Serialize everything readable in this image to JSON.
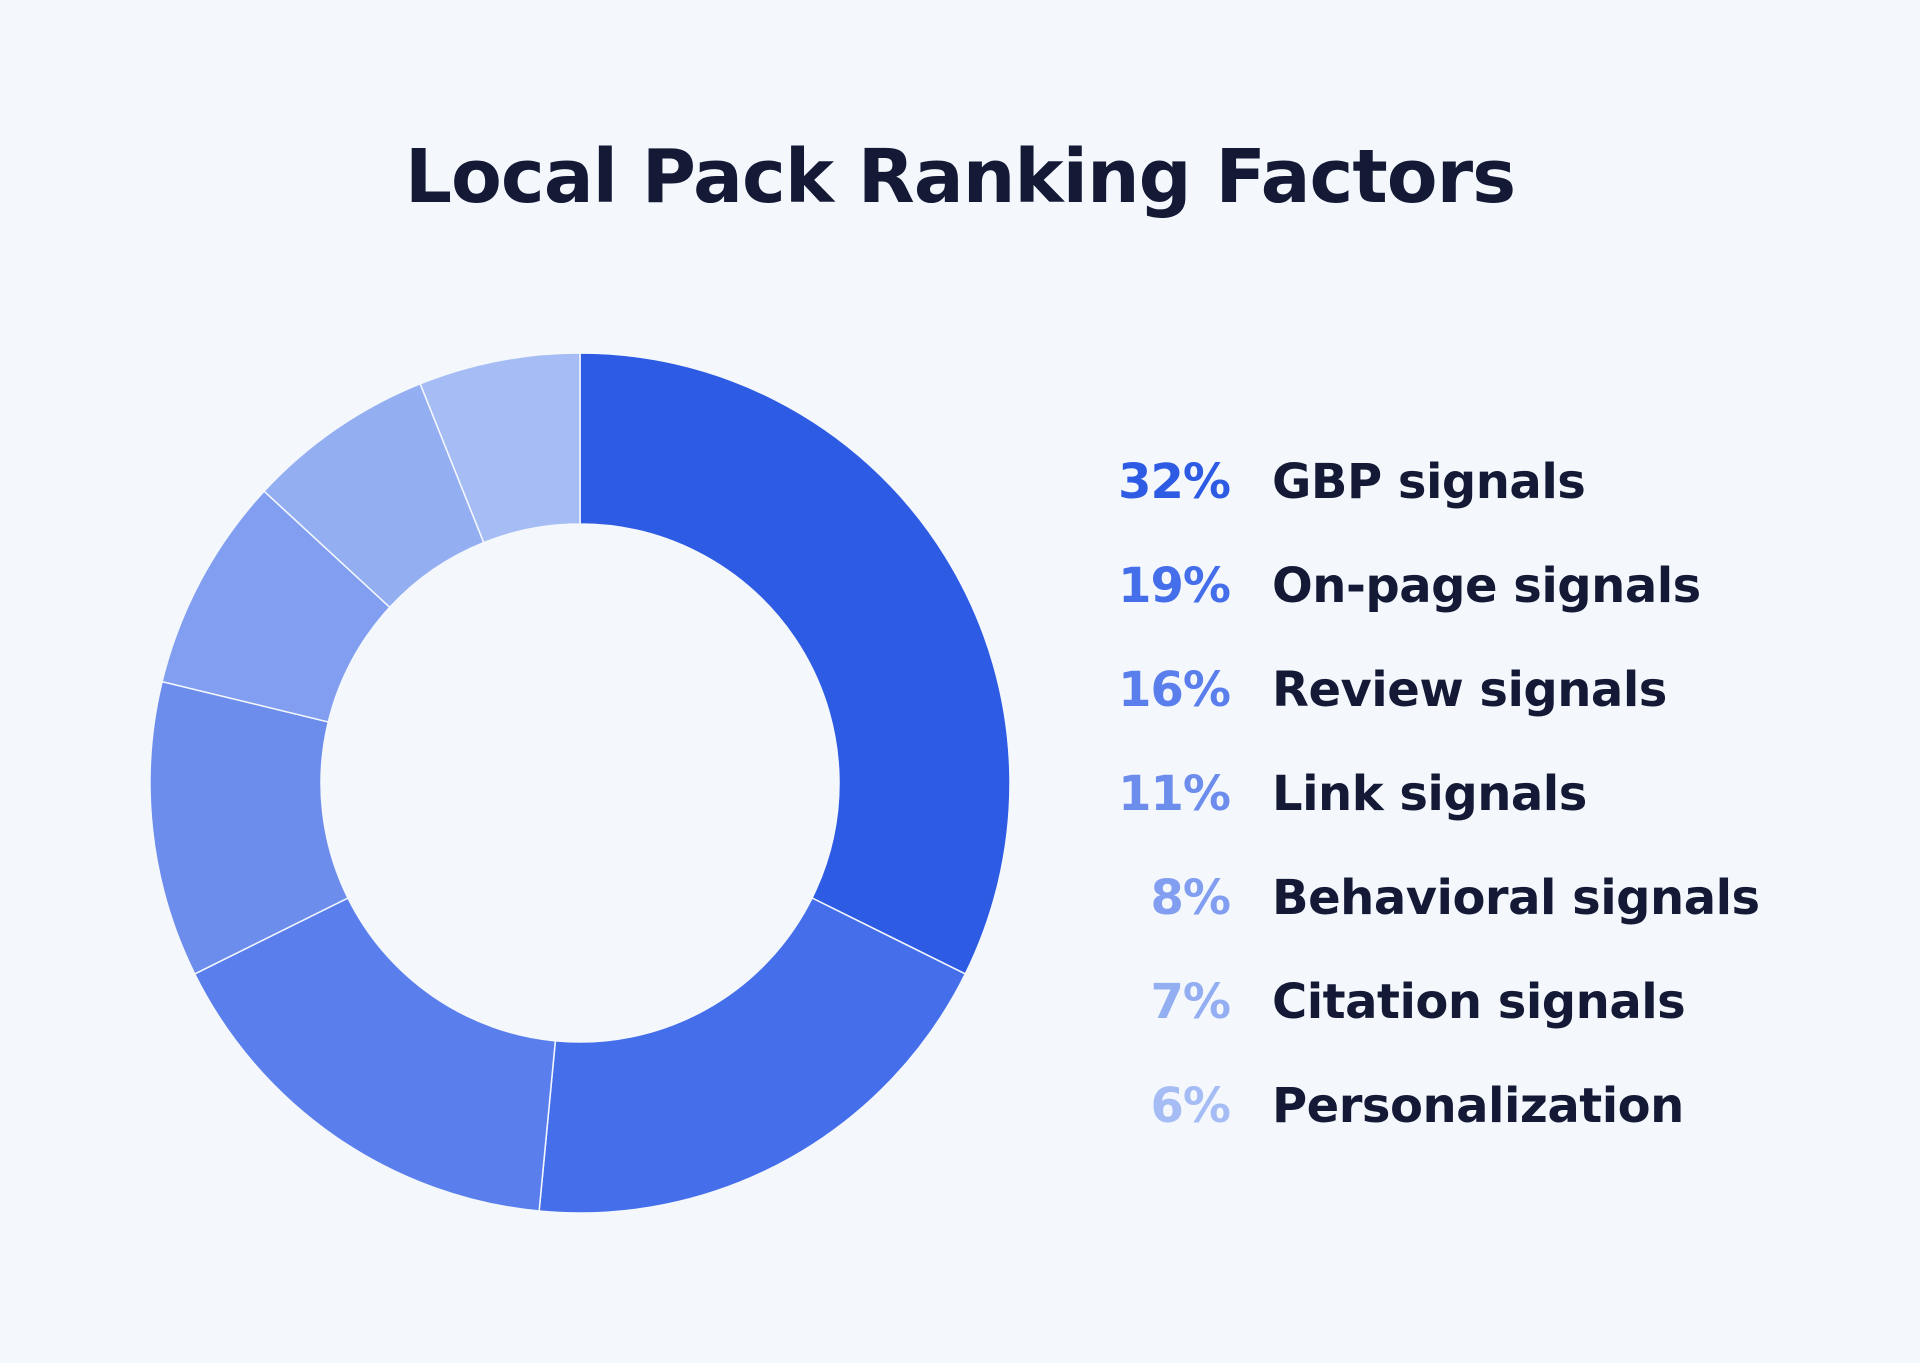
{
  "title": "Local Pack Ranking Factors",
  "chart_data": {
    "type": "pie",
    "title": "Local Pack Ranking Factors",
    "donut": true,
    "legend_position": "right",
    "slices": [
      {
        "label": "GBP signals",
        "value": 32,
        "value_label": "32%",
        "color": "#2e5be3"
      },
      {
        "label": "On-page signals",
        "value": 19,
        "value_label": "19%",
        "color": "#456eea"
      },
      {
        "label": "Review signals",
        "value": 16,
        "value_label": "16%",
        "color": "#5a7fec"
      },
      {
        "label": "Link signals",
        "value": 11,
        "value_label": "11%",
        "color": "#6d8ded"
      },
      {
        "label": "Behavioral signals",
        "value": 8,
        "value_label": "8%",
        "color": "#829ef0"
      },
      {
        "label": "Citation signals",
        "value": 7,
        "value_label": "7%",
        "color": "#94aef2"
      },
      {
        "label": "Personalization",
        "value": 6,
        "value_label": "6%",
        "color": "#a6bcf4"
      }
    ]
  }
}
